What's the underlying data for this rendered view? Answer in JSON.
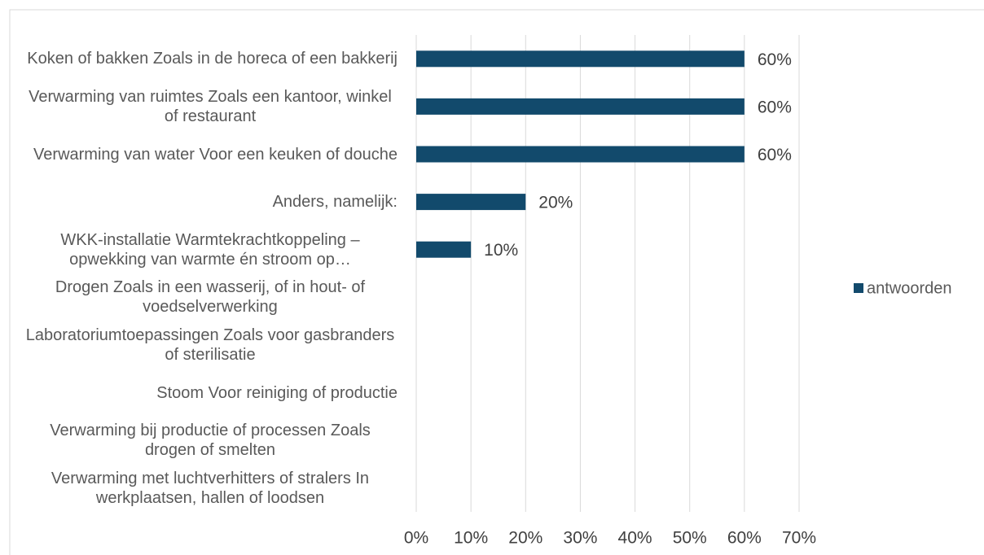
{
  "chart_data": {
    "type": "bar",
    "orientation": "horizontal",
    "categories": [
      "Koken of bakken Zoals in de horeca of een bakkerij",
      "Verwarming van ruimtes Zoals een kantoor, winkel of restaurant",
      "Verwarming van water Voor een keuken of douche",
      "Anders, namelijk:",
      "WKK-installatie Warmtekrachtkoppeling – opwekking van warmte én stroom op…",
      "Drogen Zoals in een wasserij, of in hout- of voedselverwerking",
      "Laboratoriumtoepassingen Zoals voor gasbranders of sterilisatie",
      "Stoom Voor reiniging of productie",
      "Verwarming bij productie of processen Zoals drogen of smelten",
      "Verwarming met luchtverhitters of stralers In werkplaatsen, hallen of loodsen"
    ],
    "series": [
      {
        "name": "antwoorden",
        "color": "#124a6c",
        "values": [
          60,
          60,
          60,
          20,
          10,
          0,
          0,
          0,
          0,
          0
        ],
        "value_labels": [
          "60%",
          "60%",
          "60%",
          "20%",
          "10%",
          null,
          null,
          null,
          null,
          null
        ]
      }
    ],
    "xlim": [
      0,
      70
    ],
    "xticks": [
      {
        "value": 0,
        "label": "0%"
      },
      {
        "value": 10,
        "label": "10%"
      },
      {
        "value": 20,
        "label": "20%"
      },
      {
        "value": 30,
        "label": "30%"
      },
      {
        "value": 40,
        "label": "40%"
      },
      {
        "value": 50,
        "label": "50%"
      },
      {
        "value": 60,
        "label": "60%"
      },
      {
        "value": 70,
        "label": "70%"
      }
    ],
    "grid": true,
    "legend": "right"
  }
}
